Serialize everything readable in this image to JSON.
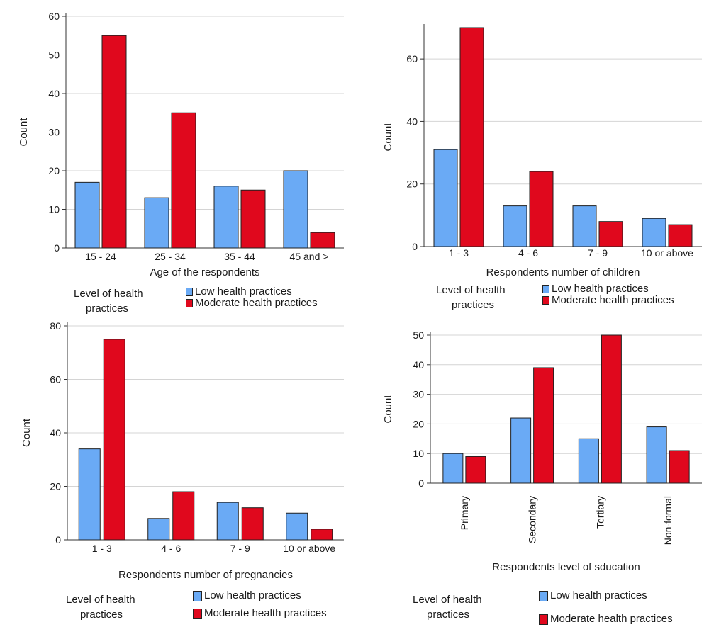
{
  "colors": {
    "low": "#6aaaf5",
    "moderate": "#e0081d",
    "grid": "#d4d4d4",
    "axis": "#333333"
  },
  "legend": {
    "title_line1": "Level of health",
    "title_line2": "practices",
    "low_label": "Low health practices",
    "moderate_label": "Moderate health practices"
  },
  "chart_data": [
    {
      "type": "bar",
      "categories": [
        "15 - 24",
        "25 - 34",
        "35 - 44",
        "45 and >"
      ],
      "series": [
        {
          "name": "Low health practices",
          "values": [
            17,
            13,
            16,
            20
          ]
        },
        {
          "name": "Moderate health practices",
          "values": [
            55,
            35,
            15,
            4
          ]
        }
      ],
      "xlabel": "Age of the respondents",
      "ylabel": "Count",
      "ylim": [
        0,
        60
      ],
      "yticks": [
        0,
        10,
        20,
        30,
        40,
        50,
        60
      ],
      "grid": true,
      "legend_position": "bottom"
    },
    {
      "type": "bar",
      "categories": [
        "1 - 3",
        "4 - 6",
        "7 - 9",
        "10 or above"
      ],
      "series": [
        {
          "name": "Low health practices",
          "values": [
            31,
            13,
            13,
            9
          ]
        },
        {
          "name": "Moderate health practices",
          "values": [
            70,
            24,
            8,
            7
          ]
        }
      ],
      "xlabel": "Respondents number of children",
      "ylabel": "Count",
      "ylim": [
        0,
        70
      ],
      "yticks": [
        0,
        20,
        40,
        60
      ],
      "grid": true,
      "legend_position": "bottom"
    },
    {
      "type": "bar",
      "categories": [
        "1 - 3",
        "4 - 6",
        "7 - 9",
        "10 or above"
      ],
      "series": [
        {
          "name": "Low health practices",
          "values": [
            34,
            8,
            14,
            10
          ]
        },
        {
          "name": "Moderate health practices",
          "values": [
            75,
            18,
            12,
            4
          ]
        }
      ],
      "xlabel": "Respondents number of pregnancies",
      "ylabel": "Count",
      "ylim": [
        0,
        80
      ],
      "yticks": [
        0,
        20,
        40,
        60,
        80
      ],
      "grid": true,
      "legend_position": "bottom"
    },
    {
      "type": "bar",
      "categories": [
        "Primary",
        "Secondary",
        "Tertiary",
        "Non-formal"
      ],
      "series": [
        {
          "name": "Low health practices",
          "values": [
            10,
            22,
            15,
            19
          ]
        },
        {
          "name": "Moderate health practices",
          "values": [
            9,
            39,
            50,
            11
          ]
        }
      ],
      "xlabel": "Respondents level of sducation",
      "ylabel": "Count",
      "ylim": [
        0,
        50
      ],
      "yticks": [
        0,
        10,
        20,
        30,
        40,
        50
      ],
      "grid": true,
      "legend_position": "bottom",
      "rotated_xticks": true
    }
  ]
}
